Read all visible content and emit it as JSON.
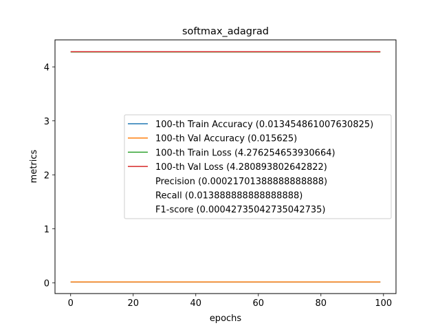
{
  "chart_data": {
    "type": "line",
    "title": "softmax_adagrad",
    "xlabel": "epochs",
    "ylabel": "metrics",
    "xlim": [
      -5,
      104
    ],
    "ylim": [
      -0.2,
      4.5
    ],
    "xticks": [
      0,
      20,
      40,
      60,
      80,
      100
    ],
    "xtick_labels": [
      "0",
      "20",
      "40",
      "60",
      "80",
      "100"
    ],
    "yticks": [
      0,
      1,
      2,
      3,
      4
    ],
    "ytick_labels": [
      "0",
      "1",
      "2",
      "3",
      "4"
    ],
    "grid": false,
    "legend_placement": "center-right",
    "series": [
      {
        "name": "100-th Train Accuracy (0.013454861007630825)",
        "color": "#1f77b4",
        "x": [
          0,
          99
        ],
        "values": [
          0.013454861007630825,
          0.013454861007630825
        ]
      },
      {
        "name": "100-th Val Accuracy (0.015625)",
        "color": "#ff7f0e",
        "x": [
          0,
          99
        ],
        "values": [
          0.015625,
          0.015625
        ]
      },
      {
        "name": "100-th Train Loss (4.276254653930664)",
        "color": "#2ca02c",
        "x": [
          0,
          99
        ],
        "values": [
          4.276254653930664,
          4.276254653930664
        ]
      },
      {
        "name": "100-th Val Loss (4.280893802642822)",
        "color": "#d62728",
        "x": [
          0,
          99
        ],
        "values": [
          4.280893802642822,
          4.280893802642822
        ]
      }
    ],
    "extra_legend_entries": [
      "Precision (0.00021701388888888888)",
      "Recall (0.013888888888888888)",
      "F1-score (0.00042735042735042735)"
    ]
  }
}
